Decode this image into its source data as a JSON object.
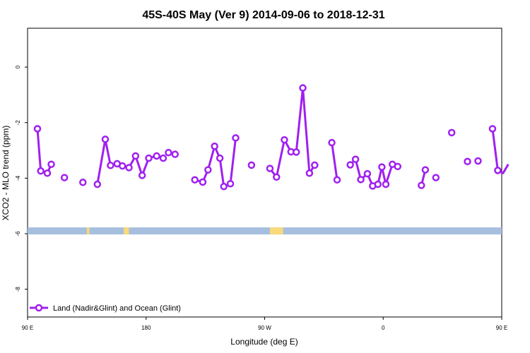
{
  "chart_data": {
    "type": "line",
    "title": "45S-40S May (Ver 9)   2014-09-06 to 2018-12-31",
    "xlabel": "Longitude (deg E)",
    "ylabel": "XCO2 - MLO trend (ppm)",
    "xlim": [
      90,
      450
    ],
    "ylim": [
      -9,
      1.4
    ],
    "x_ticks": [
      {
        "value": 90,
        "label": "90 E"
      },
      {
        "value": 180,
        "label": "180"
      },
      {
        "value": 270,
        "label": "90 W"
      },
      {
        "value": 360,
        "label": "0"
      },
      {
        "value": 450,
        "label": "90 E"
      },
      {
        "value": 540,
        "label": "180"
      }
    ],
    "y_ticks": [
      {
        "value": 0,
        "label": "0"
      },
      {
        "value": -2,
        "label": "-2"
      },
      {
        "value": -4,
        "label": "-4"
      },
      {
        "value": -6,
        "label": "-6"
      },
      {
        "value": -8,
        "label": "-8"
      }
    ],
    "grid": false,
    "legend_position": "bottom-left",
    "colors": {
      "series": "#a020f0",
      "ocean_band": "#a7bfdf",
      "land_band": "#f9d97a"
    },
    "land_band": {
      "y": -5.9,
      "land_segments": [
        [
          135,
          137
        ],
        [
          163,
          167
        ],
        [
          274,
          284
        ],
        [
          469,
          471
        ],
        [
          492,
          496
        ]
      ]
    },
    "series": [
      {
        "name": "Land (Nadir&Glint) and Ocean (Glint)",
        "segments": [
          {
            "x": [
              97.5,
              100,
              105,
              108
            ],
            "y": [
              -2.22,
              -3.74,
              -3.82,
              -3.5
            ]
          },
          {
            "x": [
              118
            ],
            "y": [
              -3.98
            ]
          },
          {
            "x": [
              132
            ],
            "y": [
              -4.15
            ]
          },
          {
            "x": [
              143,
              149,
              153,
              158,
              162,
              167,
              172,
              177,
              182,
              188,
              193
            ],
            "y": [
              -4.22,
              -2.6,
              -3.54,
              -3.48,
              -3.56,
              -3.62,
              -3.2,
              -3.9,
              -3.28,
              -3.2,
              -3.28
            ]
          },
          {
            "x": [
              197,
              202
            ],
            "y": [
              -3.08,
              -3.14
            ]
          },
          {
            "x": [
              217,
              223,
              227,
              232,
              236,
              239,
              244,
              248
            ],
            "y": [
              -4.06,
              -4.14,
              -3.7,
              -2.85,
              -3.28,
              -4.3,
              -4.2,
              -2.55
            ]
          },
          {
            "x": [
              260
            ],
            "y": [
              -3.53
            ]
          },
          {
            "x": [
              274,
              279,
              285,
              290,
              294,
              299,
              304,
              308
            ],
            "y": [
              -3.65,
              -3.96,
              -2.62,
              -3.05,
              -3.06,
              -0.75,
              -3.82,
              -3.53
            ]
          },
          {
            "x": [
              321,
              325
            ],
            "y": [
              -2.72,
              -4.06
            ]
          },
          {
            "x": [
              335,
              339,
              343,
              348,
              352,
              356,
              359,
              362,
              367,
              371
            ],
            "y": [
              -3.52,
              -3.32,
              -4.05,
              -3.84,
              -4.28,
              -4.22,
              -3.6,
              -4.22,
              -3.5,
              -3.58
            ]
          },
          {
            "x": [
              389,
              392
            ],
            "y": [
              -4.26,
              -3.7
            ]
          },
          {
            "x": [
              400
            ],
            "y": [
              -3.98
            ]
          },
          {
            "x": [
              412
            ],
            "y": [
              -2.36
            ]
          },
          {
            "x": [
              424
            ],
            "y": [
              -3.4
            ]
          },
          {
            "x": [
              432
            ],
            "y": [
              -3.38
            ]
          },
          {
            "x": [
              443,
              447,
              451,
              455
            ],
            "y": [
              -2.22,
              -3.72,
              -3.82,
              -3.5
            ]
          },
          {
            "x": [
              465
            ],
            "y": [
              -3.98
            ]
          },
          {
            "x": [
              479
            ],
            "y": [
              -4.15
            ]
          },
          {
            "x": [
              489,
              495,
              499,
              504,
              508,
              512,
              517
            ],
            "y": [
              -4.22,
              -2.6,
              -3.54,
              -3.48,
              -3.56,
              -3.62,
              -3.2
            ]
          }
        ]
      }
    ]
  }
}
